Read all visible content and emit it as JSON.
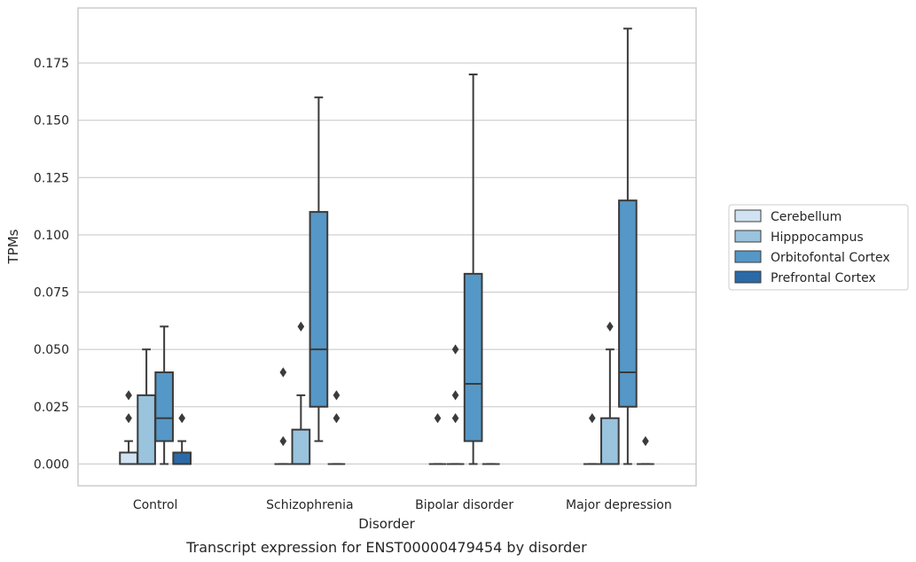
{
  "chart_data": {
    "type": "box",
    "title": "",
    "caption": "Transcript expression for ENST00000479454 by disorder",
    "xlabel": "Disorder",
    "ylabel": "TPMs",
    "ylim": [
      -0.0095,
      0.199
    ],
    "yticks": [
      0.0,
      0.025,
      0.05,
      0.075,
      0.1,
      0.125,
      0.15,
      0.175
    ],
    "ytick_labels": [
      "0.000",
      "0.025",
      "0.050",
      "0.075",
      "0.100",
      "0.125",
      "0.150",
      "0.175"
    ],
    "grid": "horizontal",
    "legend_position": "right",
    "categories": [
      "Control",
      "Schizophrenia",
      "Bipolar disorder",
      "Major depression"
    ],
    "series": [
      {
        "name": "Cerebellum",
        "color": "#d1e3f2",
        "boxes": [
          {
            "whislo": 0.0,
            "q1": 0.0,
            "med": 0.0,
            "q3": 0.005,
            "whishi": 0.01,
            "fliers": [
              0.02,
              0.03
            ]
          },
          {
            "whislo": 0.0,
            "q1": 0.0,
            "med": 0.0,
            "q3": 0.0,
            "whishi": 0.0,
            "fliers": [
              0.01,
              0.04
            ]
          },
          {
            "whislo": 0.0,
            "q1": 0.0,
            "med": 0.0,
            "q3": 0.0,
            "whishi": 0.0,
            "fliers": [
              0.02
            ]
          },
          {
            "whislo": 0.0,
            "q1": 0.0,
            "med": 0.0,
            "q3": 0.0,
            "whishi": 0.0,
            "fliers": [
              0.02
            ]
          }
        ]
      },
      {
        "name": "Hipppocampus",
        "color": "#9ac3de",
        "boxes": [
          {
            "whislo": 0.0,
            "q1": 0.0,
            "med": 0.0,
            "q3": 0.03,
            "whishi": 0.05,
            "fliers": []
          },
          {
            "whislo": 0.0,
            "q1": 0.0,
            "med": 0.0,
            "q3": 0.015,
            "whishi": 0.03,
            "fliers": [
              0.06
            ]
          },
          {
            "whislo": 0.0,
            "q1": 0.0,
            "med": 0.0,
            "q3": 0.0,
            "whishi": 0.0,
            "fliers": [
              0.02,
              0.03,
              0.05
            ]
          },
          {
            "whislo": 0.0,
            "q1": 0.0,
            "med": 0.0,
            "q3": 0.02,
            "whishi": 0.05,
            "fliers": [
              0.06
            ]
          }
        ]
      },
      {
        "name": "Orbitofontal Cortex",
        "color": "#5597c6",
        "boxes": [
          {
            "whislo": 0.0,
            "q1": 0.01,
            "med": 0.02,
            "q3": 0.04,
            "whishi": 0.06,
            "fliers": []
          },
          {
            "whislo": 0.01,
            "q1": 0.025,
            "med": 0.05,
            "q3": 0.11,
            "whishi": 0.16,
            "fliers": []
          },
          {
            "whislo": 0.0,
            "q1": 0.01,
            "med": 0.035,
            "q3": 0.083,
            "whishi": 0.17,
            "fliers": []
          },
          {
            "whislo": 0.0,
            "q1": 0.025,
            "med": 0.04,
            "q3": 0.115,
            "whishi": 0.19,
            "fliers": []
          }
        ]
      },
      {
        "name": "Prefrontal Cortex",
        "color": "#2b6aa6",
        "boxes": [
          {
            "whislo": 0.0,
            "q1": 0.0,
            "med": 0.0,
            "q3": 0.005,
            "whishi": 0.01,
            "fliers": [
              0.02
            ]
          },
          {
            "whislo": 0.0,
            "q1": 0.0,
            "med": 0.0,
            "q3": 0.0,
            "whishi": 0.0,
            "fliers": [
              0.02,
              0.03
            ]
          },
          {
            "whislo": 0.0,
            "q1": 0.0,
            "med": 0.0,
            "q3": 0.0,
            "whishi": 0.0,
            "fliers": []
          },
          {
            "whislo": 0.0,
            "q1": 0.0,
            "med": 0.0,
            "q3": 0.0,
            "whishi": 0.0,
            "fliers": [
              0.01
            ]
          }
        ]
      }
    ]
  }
}
